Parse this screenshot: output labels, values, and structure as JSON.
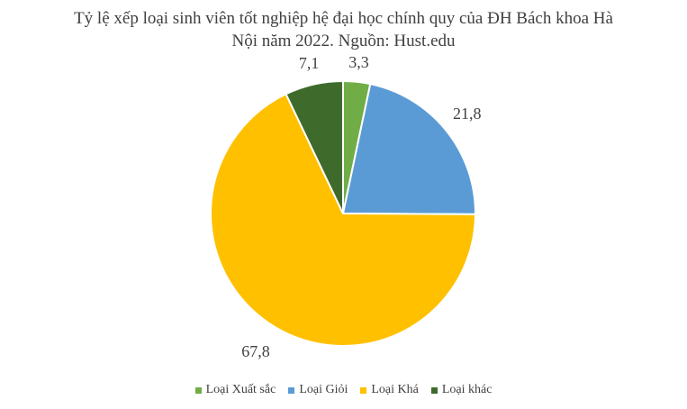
{
  "chart_data": {
    "type": "pie",
    "title_line1": "Tỷ lệ xếp loại sinh viên tốt nghiệp hệ đại học chính quy của ĐH Bách khoa Hà",
    "title_line2": "Nội năm 2022. Nguồn: Hust.edu",
    "categories": [
      "Loại Xuất sắc",
      "Loại Giỏi",
      "Loại Khá",
      "Loại khác"
    ],
    "values": [
      3.3,
      21.8,
      67.8,
      7.1
    ],
    "labels": [
      "3,3",
      "21,8",
      "67,8",
      "7,1"
    ],
    "colors": [
      "#70ad47",
      "#5b9bd5",
      "#ffc000",
      "#3e6b2b"
    ],
    "start_angle": "12 o'clock",
    "direction": "clockwise",
    "legend_position": "bottom"
  }
}
